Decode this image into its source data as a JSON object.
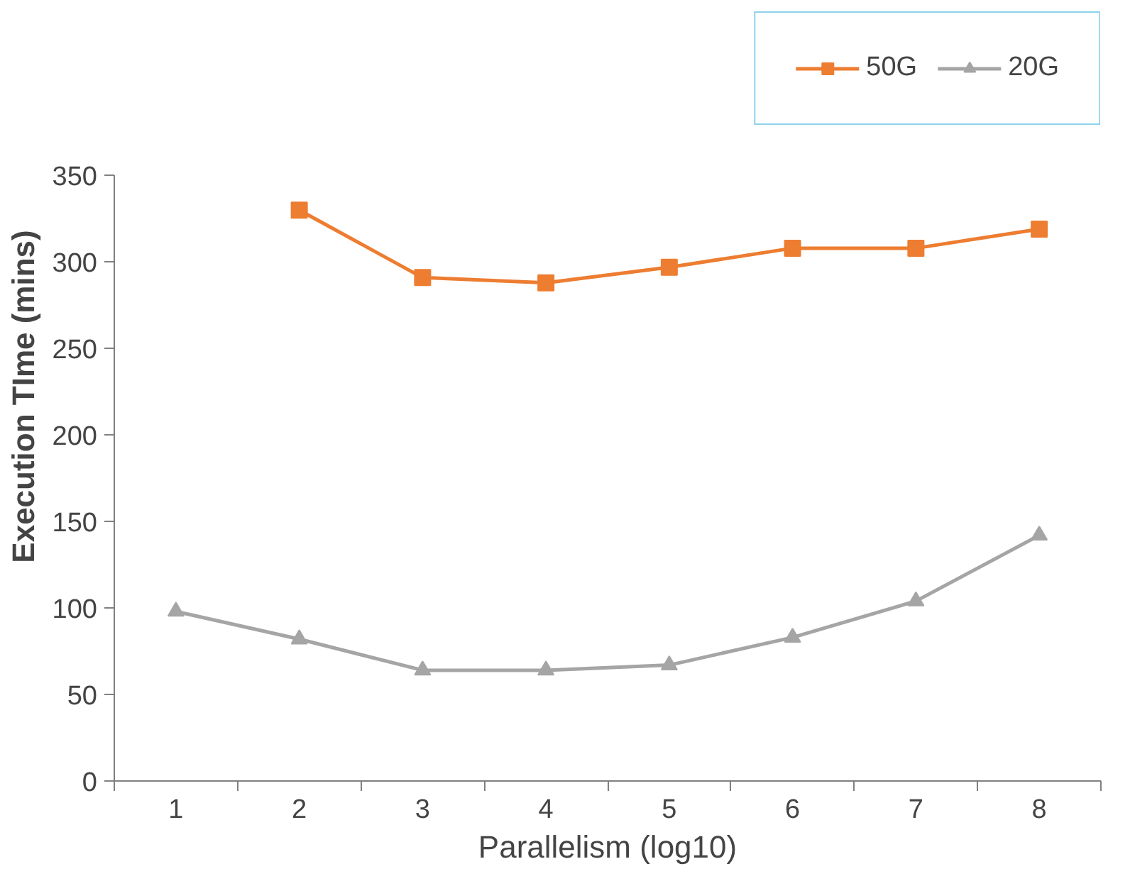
{
  "chart_data": {
    "type": "line",
    "xlabel": "Parallelism (log10)",
    "ylabel": "Execution TIme (mins)",
    "categories": [
      "1",
      "2",
      "3",
      "4",
      "5",
      "6",
      "7",
      "8"
    ],
    "series": [
      {
        "name": "50G",
        "color": "#ed7d31",
        "marker": "square",
        "values": [
          null,
          330,
          291,
          288,
          297,
          308,
          308,
          319
        ]
      },
      {
        "name": "20G",
        "color": "#a5a5a5",
        "marker": "triangle",
        "values": [
          98,
          82,
          64,
          64,
          67,
          83,
          104,
          142
        ]
      }
    ],
    "ylim": [
      0,
      350
    ],
    "yticks": [
      0,
      50,
      100,
      150,
      200,
      250,
      300,
      350
    ],
    "grid": false,
    "legend": "top right",
    "line_style": "solid"
  }
}
